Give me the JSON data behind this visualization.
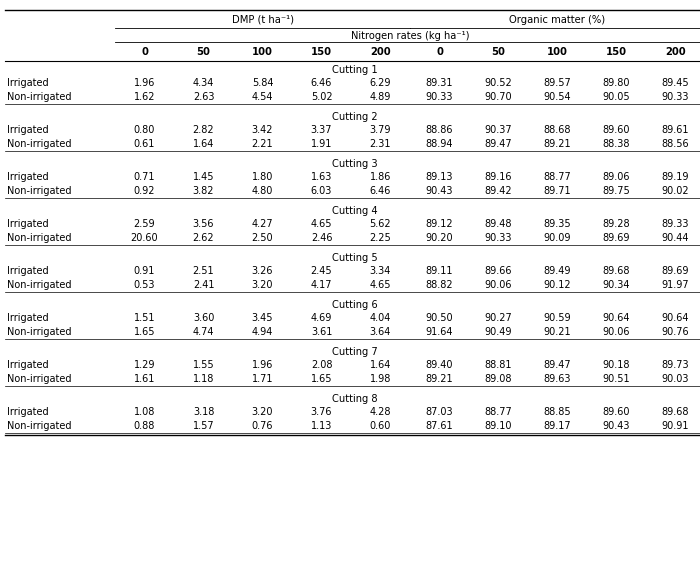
{
  "col_header_top_dmp": "DMP (t ha⁻¹)",
  "col_header_top_om": "Organic matter (%)",
  "col_header_mid": "Nitrogen rates (kg ha⁻¹)",
  "col_header_bot": [
    "0",
    "50",
    "100",
    "150",
    "200",
    "0",
    "50",
    "100",
    "150",
    "200"
  ],
  "cuttings": [
    "Cutting 1",
    "Cutting 2",
    "Cutting 3",
    "Cutting 4",
    "Cutting 5",
    "Cutting 6",
    "Cutting 7",
    "Cutting 8"
  ],
  "rows": [
    [
      "Irrigated",
      "1.96",
      "4.34",
      "5.84",
      "6.46",
      "6.29",
      "89.31",
      "90.52",
      "89.57",
      "89.80",
      "89.45"
    ],
    [
      "Non-irrigated",
      "1.62",
      "2.63",
      "4.54",
      "5.02",
      "4.89",
      "90.33",
      "90.70",
      "90.54",
      "90.05",
      "90.33"
    ],
    [
      "Irrigated",
      "0.80",
      "2.82",
      "3.42",
      "3.37",
      "3.79",
      "88.86",
      "90.37",
      "88.68",
      "89.60",
      "89.61"
    ],
    [
      "Non-irrigated",
      "0.61",
      "1.64",
      "2.21",
      "1.91",
      "2.31",
      "88.94",
      "89.47",
      "89.21",
      "88.38",
      "88.56"
    ],
    [
      "Irrigated",
      "0.71",
      "1.45",
      "1.80",
      "1.63",
      "1.86",
      "89.13",
      "89.16",
      "88.77",
      "89.06",
      "89.19"
    ],
    [
      "Non-irrigated",
      "0.92",
      "3.82",
      "4.80",
      "6.03",
      "6.46",
      "90.43",
      "89.42",
      "89.71",
      "89.75",
      "90.02"
    ],
    [
      "Irrigated",
      "2.59",
      "3.56",
      "4.27",
      "4.65",
      "5.62",
      "89.12",
      "89.48",
      "89.35",
      "89.28",
      "89.33"
    ],
    [
      "Non-irrigated",
      "20.60",
      "2.62",
      "2.50",
      "2.46",
      "2.25",
      "90.20",
      "90.33",
      "90.09",
      "89.69",
      "90.44"
    ],
    [
      "Irrigated",
      "0.91",
      "2.51",
      "3.26",
      "2.45",
      "3.34",
      "89.11",
      "89.66",
      "89.49",
      "89.68",
      "89.69"
    ],
    [
      "Non-irrigated",
      "0.53",
      "2.41",
      "3.20",
      "4.17",
      "4.65",
      "88.82",
      "90.06",
      "90.12",
      "90.34",
      "91.97"
    ],
    [
      "Irrigated",
      "1.51",
      "3.60",
      "3.45",
      "4.69",
      "4.04",
      "90.50",
      "90.27",
      "90.59",
      "90.64",
      "90.64"
    ],
    [
      "Non-irrigated",
      "1.65",
      "4.74",
      "4.94",
      "3.61",
      "3.64",
      "91.64",
      "90.49",
      "90.21",
      "90.06",
      "90.76"
    ],
    [
      "Irrigated",
      "1.29",
      "1.55",
      "1.96",
      "2.08",
      "1.64",
      "89.40",
      "88.81",
      "89.47",
      "90.18",
      "89.73"
    ],
    [
      "Non-irrigated",
      "1.61",
      "1.18",
      "1.71",
      "1.65",
      "1.98",
      "89.21",
      "89.08",
      "89.63",
      "90.51",
      "90.03"
    ],
    [
      "Irrigated",
      "1.08",
      "3.18",
      "3.20",
      "3.76",
      "4.28",
      "87.03",
      "88.77",
      "88.85",
      "89.60",
      "89.68"
    ],
    [
      "Non-irrigated",
      "0.88",
      "1.57",
      "0.76",
      "1.13",
      "0.60",
      "87.61",
      "89.10",
      "89.17",
      "90.43",
      "90.91"
    ]
  ],
  "fontsize": 7.0,
  "fontfamily": "DejaVu Sans"
}
